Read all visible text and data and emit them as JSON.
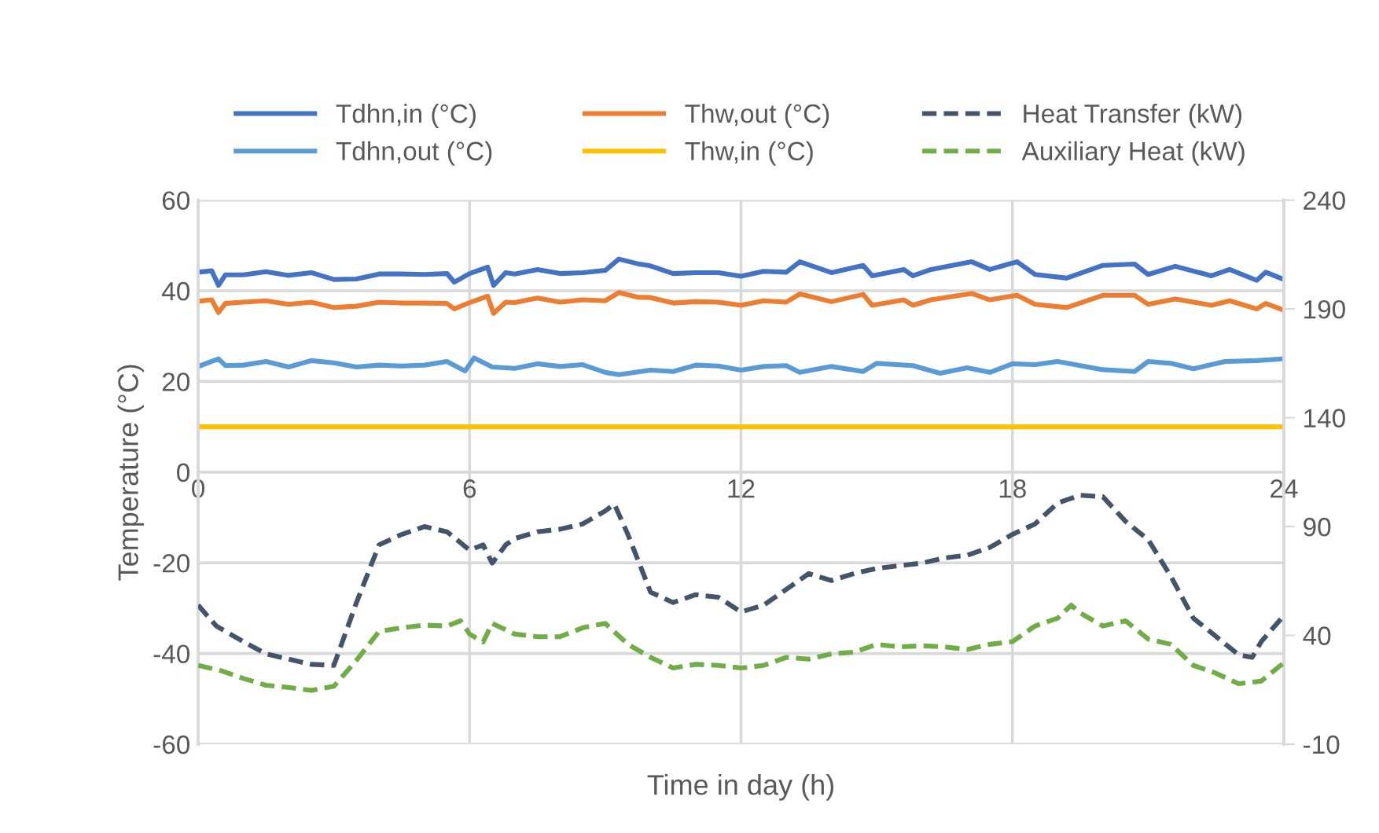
{
  "chart_data": {
    "type": "line",
    "xlabel": "Time in day (h)",
    "ylabel": "Temperature (°C)",
    "xlim": [
      0,
      24
    ],
    "xticks": [
      0,
      6,
      12,
      18,
      24
    ],
    "ylim": [
      -60,
      60
    ],
    "yticks": [
      -60,
      -40,
      -20,
      0,
      20,
      40,
      60
    ],
    "y2lim": [
      -10,
      240
    ],
    "y2ticks": [
      -10,
      40,
      90,
      140,
      190,
      240
    ],
    "grid": true,
    "legend": "top",
    "marker": "none",
    "series": [
      {
        "name": "Tdhn,in (°C)",
        "color": "#4472c4",
        "line_style": "solid",
        "x": [
          0,
          0.3,
          0.45,
          0.6,
          1,
          1.5,
          2,
          2.5,
          3,
          3.5,
          4,
          4.5,
          5,
          5.5,
          5.66,
          6,
          6.4,
          6.53,
          6.8,
          7,
          7.5,
          8,
          8.5,
          9,
          9.3,
          9.7,
          10,
          10.5,
          11,
          11.5,
          12,
          12.5,
          13,
          13.3,
          14,
          14.7,
          14.9,
          15.6,
          15.8,
          16.2,
          17.1,
          17.5,
          18.1,
          18.5,
          19.2,
          20,
          20.7,
          21,
          21.6,
          22.4,
          22.8,
          23.4,
          23.6,
          24
        ],
        "values": [
          44.1,
          44.4,
          41.2,
          43.5,
          43.5,
          44.2,
          43.4,
          44.0,
          42.5,
          42.6,
          43.7,
          43.7,
          43.6,
          43.8,
          41.9,
          43.8,
          45.2,
          41.2,
          44.0,
          43.7,
          44.7,
          43.8,
          44.0,
          44.5,
          47.0,
          46.0,
          45.5,
          43.8,
          44.0,
          44.0,
          43.2,
          44.3,
          44.1,
          46.4,
          44.0,
          45.6,
          43.3,
          44.7,
          43.3,
          44.7,
          46.4,
          44.7,
          46.4,
          43.6,
          42.8,
          45.6,
          45.9,
          43.6,
          45.4,
          43.3,
          44.7,
          42.3,
          44.1,
          42.5
        ]
      },
      {
        "name": "Tdhn,out (°C)",
        "color": "#5b9bd5",
        "line_style": "solid",
        "x": [
          0,
          0.45,
          0.6,
          1,
          1.5,
          2,
          2.5,
          3,
          3.5,
          4,
          4.5,
          5,
          5.5,
          5.9,
          6.1,
          6.5,
          7,
          7.5,
          8,
          8.5,
          9,
          9.3,
          10,
          10.5,
          11,
          11.5,
          12,
          12.5,
          13,
          13.3,
          14,
          14.7,
          15,
          15.8,
          16.4,
          17,
          17.5,
          18,
          18.5,
          19,
          19.5,
          20,
          20.7,
          21,
          21.5,
          22,
          22.7,
          23.4,
          24
        ],
        "values": [
          23.3,
          25.0,
          23.5,
          23.6,
          24.4,
          23.2,
          24.6,
          24.1,
          23.2,
          23.6,
          23.4,
          23.6,
          24.4,
          22.3,
          25.2,
          23.2,
          22.9,
          23.9,
          23.3,
          23.7,
          22.0,
          21.5,
          22.5,
          22.2,
          23.6,
          23.4,
          22.5,
          23.3,
          23.5,
          22.0,
          23.3,
          22.2,
          24.0,
          23.5,
          21.8,
          23.0,
          22.0,
          23.9,
          23.7,
          24.4,
          23.5,
          22.6,
          22.2,
          24.4,
          24.0,
          22.8,
          24.4,
          24.6,
          25.0
        ]
      },
      {
        "name": "Thw,out (°C)",
        "color": "#ed7d31",
        "line_style": "solid",
        "x": [
          0,
          0.3,
          0.45,
          0.6,
          1,
          1.5,
          2,
          2.5,
          3,
          3.5,
          4,
          4.5,
          5,
          5.5,
          5.66,
          6,
          6.4,
          6.53,
          6.8,
          7,
          7.5,
          8,
          8.5,
          9,
          9.3,
          9.7,
          10,
          10.5,
          11,
          11.5,
          12,
          12.5,
          13,
          13.3,
          14,
          14.7,
          14.9,
          15.6,
          15.8,
          16.2,
          17.1,
          17.5,
          18.1,
          18.5,
          19.2,
          20,
          20.7,
          21,
          21.6,
          22.4,
          22.8,
          23.4,
          23.6,
          24
        ],
        "values": [
          37.7,
          38.0,
          35.2,
          37.2,
          37.5,
          37.8,
          37.0,
          37.5,
          36.3,
          36.6,
          37.5,
          37.3,
          37.3,
          37.2,
          36.0,
          37.4,
          38.8,
          35.0,
          37.5,
          37.4,
          38.4,
          37.5,
          38.0,
          37.8,
          39.6,
          38.6,
          38.5,
          37.3,
          37.6,
          37.5,
          36.8,
          37.8,
          37.5,
          39.3,
          37.6,
          39.2,
          36.8,
          38.0,
          36.8,
          38.0,
          39.4,
          38.0,
          39.0,
          37.0,
          36.3,
          39.0,
          39.0,
          37.0,
          38.2,
          36.8,
          37.8,
          36.0,
          37.2,
          35.7
        ]
      },
      {
        "name": "Thw,in (°C)",
        "color": "#ffc000",
        "line_style": "solid",
        "x": [
          0,
          24
        ],
        "values": [
          10,
          10
        ]
      },
      {
        "name": "Heat Transfer (kW)",
        "color": "#44546a",
        "line_style": "dashed",
        "axis": "y2",
        "x": [
          0,
          0.4,
          1,
          1.5,
          2,
          2.5,
          3,
          3.5,
          4,
          4.5,
          5,
          5.5,
          6,
          6.3,
          6.5,
          6.8,
          7,
          7.5,
          8,
          8.5,
          9,
          9.2,
          9.5,
          10,
          10.5,
          11,
          11.5,
          12,
          12.5,
          13,
          13.5,
          14,
          14.5,
          15,
          15.5,
          16,
          16.5,
          17,
          17.5,
          18,
          18.5,
          19,
          19.5,
          20,
          20.5,
          21,
          21.5,
          22,
          22.5,
          23,
          23.3,
          23.5,
          24
        ],
        "values": [
          53.9,
          44.3,
          37.1,
          31.5,
          29.1,
          26.7,
          26.2,
          55.1,
          81.6,
          86.4,
          90.0,
          87.6,
          79.2,
          81.6,
          73.2,
          81.6,
          84.5,
          87.6,
          88.8,
          91.2,
          97.2,
          100.3,
          86.4,
          59.9,
          55.1,
          58.7,
          57.5,
          50.8,
          53.9,
          61.1,
          68.4,
          65.2,
          68.4,
          70.8,
          72.0,
          73.2,
          75.6,
          76.8,
          80.4,
          86.4,
          91.2,
          100.8,
          104.4,
          103.7,
          92.4,
          84.0,
          67.2,
          47.9,
          39.5,
          31.1,
          29.9,
          37.1,
          49.1
        ]
      },
      {
        "name": "Auxiliary Heat (kW)",
        "color": "#70ad47",
        "line_style": "dashed",
        "axis": "y2",
        "x": [
          0,
          0.5,
          1,
          1.5,
          2,
          2.5,
          3,
          3.5,
          4,
          4.5,
          5,
          5.5,
          5.8,
          6,
          6.3,
          6.5,
          7,
          7.5,
          8,
          8.5,
          9,
          9.5,
          10,
          10.5,
          11,
          11.5,
          12,
          12.5,
          13,
          13.5,
          14,
          14.5,
          15,
          15.5,
          16,
          16.5,
          17,
          17.5,
          18,
          18.5,
          19,
          19.3,
          19.5,
          20,
          20.5,
          21,
          21.5,
          22,
          22.5,
          23,
          23.5,
          24
        ],
        "values": [
          26.2,
          23.8,
          20.2,
          17.1,
          16.1,
          14.7,
          16.6,
          28.6,
          41.8,
          43.5,
          44.7,
          44.3,
          46.7,
          40.6,
          37.0,
          45.5,
          40.6,
          39.4,
          39.4,
          43.5,
          45.5,
          35.9,
          29.9,
          25.0,
          26.7,
          26.2,
          25.0,
          26.2,
          29.9,
          29.1,
          31.5,
          32.3,
          35.9,
          34.7,
          35.2,
          34.7,
          33.5,
          35.9,
          37.1,
          44.3,
          47.9,
          53.9,
          50.3,
          44.3,
          46.7,
          38.3,
          35.9,
          26.2,
          22.6,
          17.8,
          19.0,
          27.4
        ]
      }
    ]
  }
}
